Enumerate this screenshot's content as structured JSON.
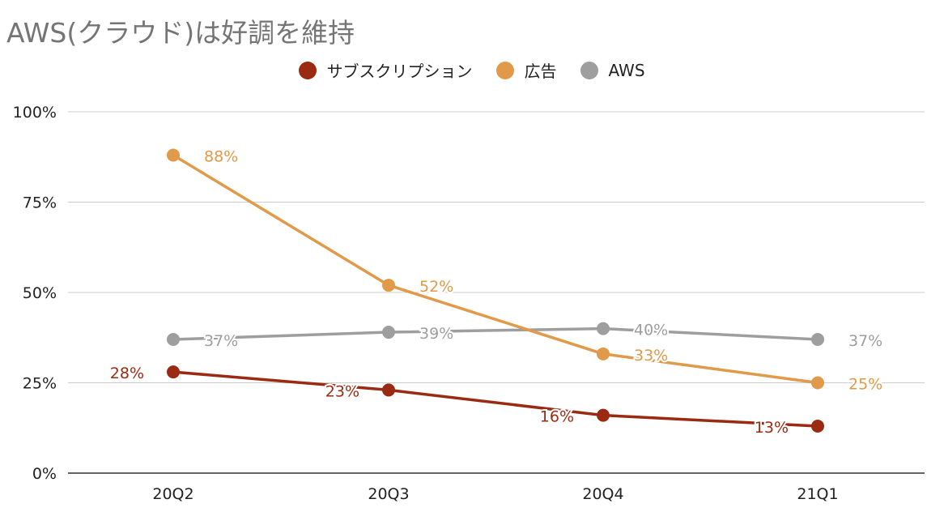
{
  "chart_data": {
    "type": "line",
    "title": "AWS(クラウド)は好調を維持",
    "categories": [
      "20Q2",
      "20Q3",
      "20Q4",
      "21Q1"
    ],
    "ylim": [
      0,
      100
    ],
    "yticks": [
      "0%",
      "25%",
      "50%",
      "75%",
      "100%"
    ],
    "ytick_values": [
      0,
      25,
      50,
      75,
      100
    ],
    "grid": true,
    "legend_position": "top",
    "series": [
      {
        "name": "サブスクリプション",
        "color": "#9b2a12",
        "values": [
          28,
          23,
          16,
          13
        ],
        "labels": [
          "28%",
          "23%",
          "16%",
          "13%"
        ]
      },
      {
        "name": "広告",
        "color": "#e09a49",
        "values": [
          88,
          52,
          33,
          25
        ],
        "labels": [
          "88%",
          "52%",
          "33%",
          "25%"
        ]
      },
      {
        "name": "AWS",
        "color": "#9e9e9e",
        "values": [
          37,
          39,
          40,
          37
        ],
        "labels": [
          "37%",
          "39%",
          "40%",
          "37%"
        ]
      }
    ]
  }
}
